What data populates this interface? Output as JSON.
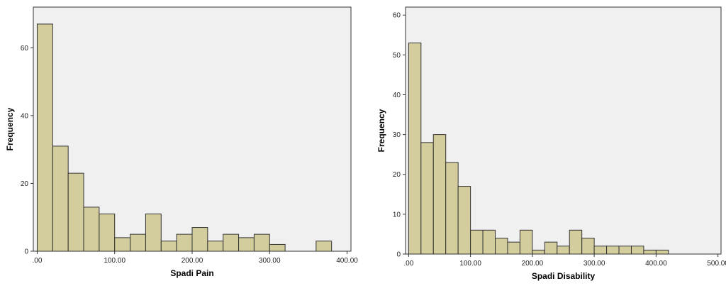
{
  "colors": {
    "bar_fill": "#d3cd9d",
    "bar_stroke": "#333333",
    "plot_bg": "#f0f0f0",
    "frame": "#333333"
  },
  "chart_data": [
    {
      "type": "bar",
      "title": "",
      "xlabel": "Spadi Pain",
      "ylabel": "Frequency",
      "xlim": [
        -5,
        405
      ],
      "ylim": [
        0,
        72
      ],
      "xticks": [
        0,
        100,
        200,
        300,
        400
      ],
      "xtick_labels": [
        ".00",
        "100.00",
        "200.00",
        "300.00",
        "400.00"
      ],
      "yticks": [
        0,
        20,
        40,
        60
      ],
      "ytick_labels": [
        "0",
        "20",
        "40",
        "60"
      ],
      "grid": false,
      "bin_width": 20,
      "bins": [
        {
          "start": 0,
          "end": 20,
          "count": 67
        },
        {
          "start": 20,
          "end": 40,
          "count": 31
        },
        {
          "start": 40,
          "end": 60,
          "count": 23
        },
        {
          "start": 60,
          "end": 80,
          "count": 13
        },
        {
          "start": 80,
          "end": 100,
          "count": 11
        },
        {
          "start": 100,
          "end": 120,
          "count": 4
        },
        {
          "start": 120,
          "end": 140,
          "count": 5
        },
        {
          "start": 140,
          "end": 160,
          "count": 11
        },
        {
          "start": 160,
          "end": 180,
          "count": 3
        },
        {
          "start": 180,
          "end": 200,
          "count": 5
        },
        {
          "start": 200,
          "end": 220,
          "count": 7
        },
        {
          "start": 220,
          "end": 240,
          "count": 3
        },
        {
          "start": 240,
          "end": 260,
          "count": 5
        },
        {
          "start": 260,
          "end": 280,
          "count": 4
        },
        {
          "start": 280,
          "end": 300,
          "count": 5
        },
        {
          "start": 300,
          "end": 320,
          "count": 2
        },
        {
          "start": 360,
          "end": 380,
          "count": 3
        }
      ]
    },
    {
      "type": "bar",
      "title": "",
      "xlabel": "Spadi Disability",
      "ylabel": "Frequency",
      "xlim": [
        -5,
        505
      ],
      "ylim": [
        0,
        62
      ],
      "xticks": [
        0,
        100,
        200,
        300,
        400,
        500
      ],
      "xtick_labels": [
        ".00",
        "100.00",
        "200.00",
        "300.00",
        "400.00",
        "500.00"
      ],
      "yticks": [
        0,
        10,
        20,
        30,
        40,
        50,
        60
      ],
      "ytick_labels": [
        "0",
        "10",
        "20",
        "30",
        "40",
        "50",
        "60"
      ],
      "grid": false,
      "bin_width": 20,
      "bins": [
        {
          "start": 0,
          "end": 20,
          "count": 53
        },
        {
          "start": 20,
          "end": 40,
          "count": 28
        },
        {
          "start": 40,
          "end": 60,
          "count": 30
        },
        {
          "start": 60,
          "end": 80,
          "count": 23
        },
        {
          "start": 80,
          "end": 100,
          "count": 17
        },
        {
          "start": 100,
          "end": 120,
          "count": 6
        },
        {
          "start": 120,
          "end": 140,
          "count": 6
        },
        {
          "start": 140,
          "end": 160,
          "count": 4
        },
        {
          "start": 160,
          "end": 180,
          "count": 3
        },
        {
          "start": 180,
          "end": 200,
          "count": 6
        },
        {
          "start": 200,
          "end": 220,
          "count": 1
        },
        {
          "start": 220,
          "end": 240,
          "count": 3
        },
        {
          "start": 240,
          "end": 260,
          "count": 2
        },
        {
          "start": 260,
          "end": 280,
          "count": 6
        },
        {
          "start": 280,
          "end": 300,
          "count": 4
        },
        {
          "start": 300,
          "end": 320,
          "count": 2
        },
        {
          "start": 320,
          "end": 340,
          "count": 2
        },
        {
          "start": 340,
          "end": 360,
          "count": 2
        },
        {
          "start": 360,
          "end": 380,
          "count": 2
        },
        {
          "start": 380,
          "end": 400,
          "count": 1
        },
        {
          "start": 400,
          "end": 420,
          "count": 1
        }
      ]
    }
  ]
}
